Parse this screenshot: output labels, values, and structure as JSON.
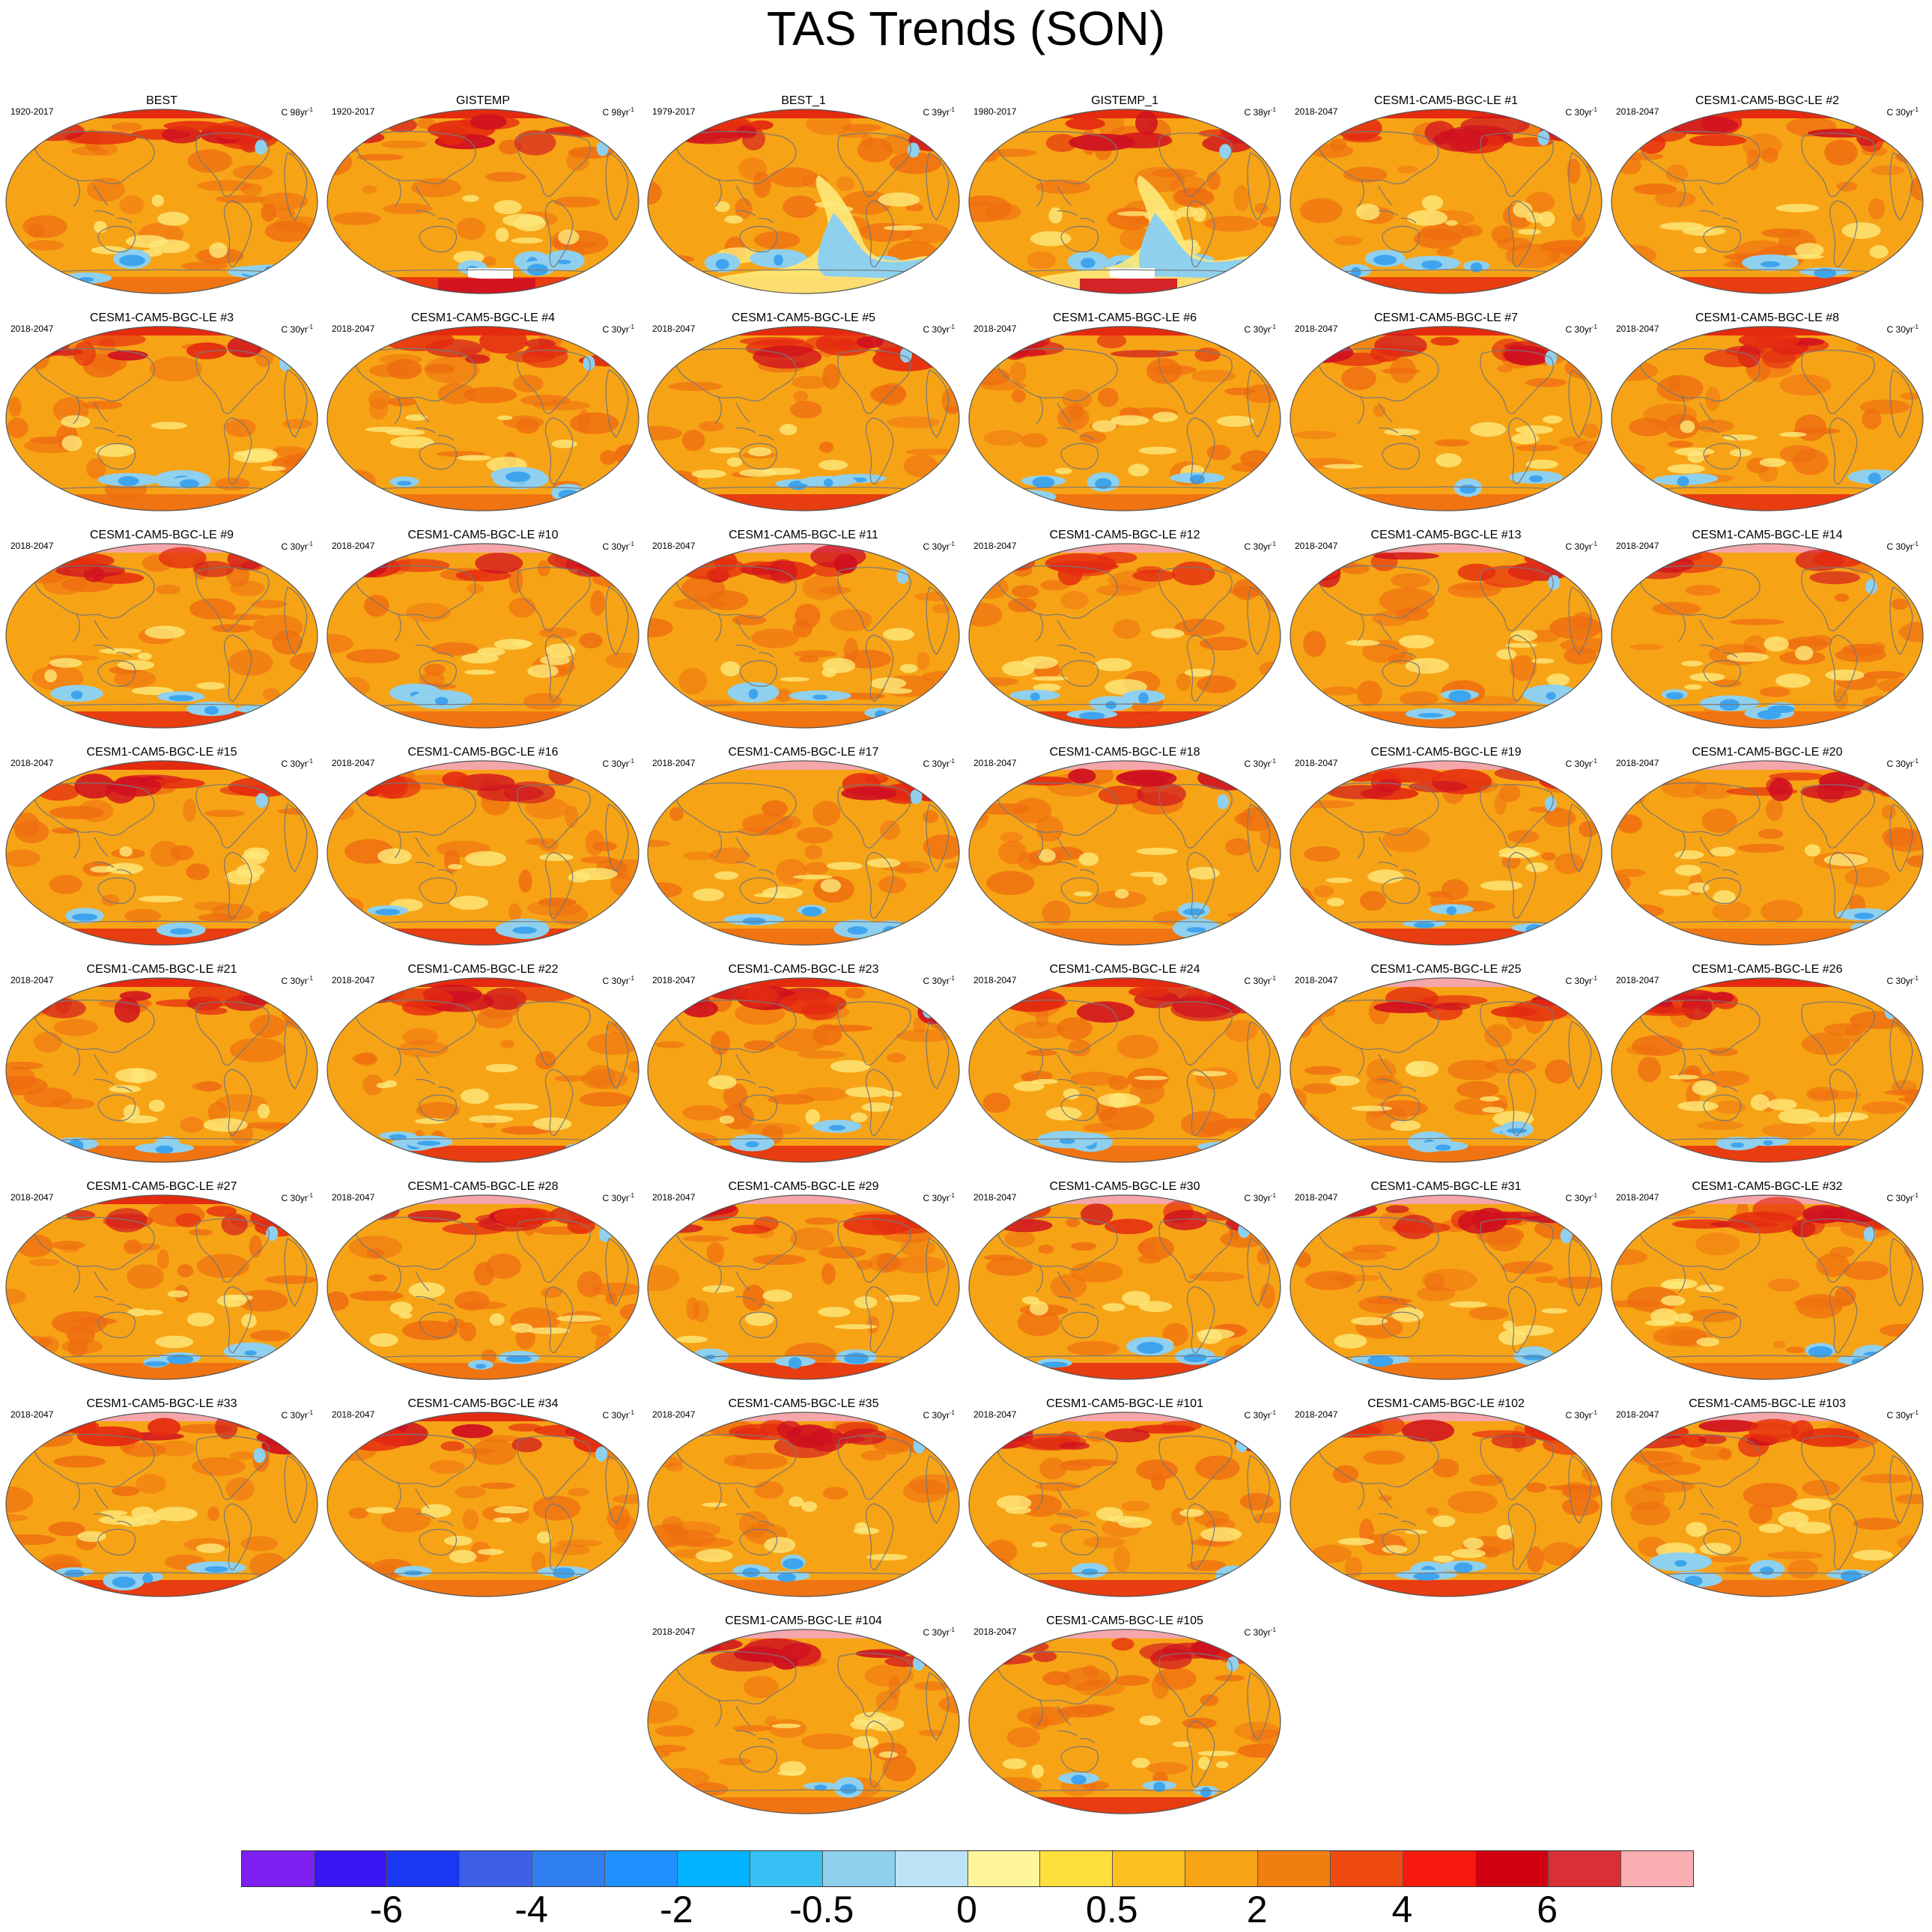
{
  "figure": {
    "title": "TAS Trends (SON)"
  },
  "colors": {
    "base": "#f7a316",
    "warm": "#ee6c10",
    "hot": "#e42b10",
    "veryhot": "#cf1020",
    "pink": "#f4a6aa",
    "light_yellow": "#fde97a",
    "cool": "#8fd0ef",
    "cooler": "#3ea4ee",
    "white": "#ffffff",
    "land_outline": "#777777"
  },
  "colorbar": {
    "colors": [
      "#7e20f2",
      "#3a16f7",
      "#1a38f2",
      "#3d5fe6",
      "#2f7ef0",
      "#1e90ff",
      "#00b2ff",
      "#36c0f3",
      "#8fd0ef",
      "#bde3f7",
      "#fff59a",
      "#fde03c",
      "#fcc020",
      "#f7a316",
      "#f07f10",
      "#f04b0e",
      "#f81a0e",
      "#d00010",
      "#d83035",
      "#f9aeb1"
    ],
    "labels": [
      "-6",
      "-4",
      "-2",
      "-0.5",
      "0",
      "0.5",
      "2",
      "4",
      "6"
    ]
  },
  "panels": [
    {
      "name": "BEST",
      "period": "1920-2017",
      "units": "C 98yr",
      "style": "obs_long"
    },
    {
      "name": "GISTEMP",
      "period": "1920-2017",
      "units": "C 98yr",
      "style": "obs_long_g"
    },
    {
      "name": "BEST_1",
      "period": "1979-2017",
      "units": "C 39yr",
      "style": "obs_short"
    },
    {
      "name": "GISTEMP_1",
      "period": "1980-2017",
      "units": "C 38yr",
      "style": "obs_short_g"
    },
    {
      "name": "CESM1-CAM5-BGC-LE #1",
      "period": "2018-2047",
      "units": "C 30yr",
      "style": "model"
    },
    {
      "name": "CESM1-CAM5-BGC-LE #2",
      "period": "2018-2047",
      "units": "C 30yr",
      "style": "model"
    },
    {
      "name": "CESM1-CAM5-BGC-LE #3",
      "period": "2018-2047",
      "units": "C 30yr",
      "style": "model"
    },
    {
      "name": "CESM1-CAM5-BGC-LE #4",
      "period": "2018-2047",
      "units": "C 30yr",
      "style": "model"
    },
    {
      "name": "CESM1-CAM5-BGC-LE #5",
      "period": "2018-2047",
      "units": "C 30yr",
      "style": "model"
    },
    {
      "name": "CESM1-CAM5-BGC-LE #6",
      "period": "2018-2047",
      "units": "C 30yr",
      "style": "model"
    },
    {
      "name": "CESM1-CAM5-BGC-LE #7",
      "period": "2018-2047",
      "units": "C 30yr",
      "style": "model"
    },
    {
      "name": "CESM1-CAM5-BGC-LE #8",
      "period": "2018-2047",
      "units": "C 30yr",
      "style": "model"
    },
    {
      "name": "CESM1-CAM5-BGC-LE #9",
      "period": "2018-2047",
      "units": "C 30yr",
      "style": "model_pink"
    },
    {
      "name": "CESM1-CAM5-BGC-LE #10",
      "period": "2018-2047",
      "units": "C 30yr",
      "style": "model_pink"
    },
    {
      "name": "CESM1-CAM5-BGC-LE #11",
      "period": "2018-2047",
      "units": "C 30yr",
      "style": "model_pink"
    },
    {
      "name": "CESM1-CAM5-BGC-LE #12",
      "period": "2018-2047",
      "units": "C 30yr",
      "style": "model_pink"
    },
    {
      "name": "CESM1-CAM5-BGC-LE #13",
      "period": "2018-2047",
      "units": "C 30yr",
      "style": "model_pink"
    },
    {
      "name": "CESM1-CAM5-BGC-LE #14",
      "period": "2018-2047",
      "units": "C 30yr",
      "style": "model_pink"
    },
    {
      "name": "CESM1-CAM5-BGC-LE #15",
      "period": "2018-2047",
      "units": "C 30yr",
      "style": "model"
    },
    {
      "name": "CESM1-CAM5-BGC-LE #16",
      "period": "2018-2047",
      "units": "C 30yr",
      "style": "model_pink"
    },
    {
      "name": "CESM1-CAM5-BGC-LE #17",
      "period": "2018-2047",
      "units": "C 30yr",
      "style": "model_pink"
    },
    {
      "name": "CESM1-CAM5-BGC-LE #18",
      "period": "2018-2047",
      "units": "C 30yr",
      "style": "model_pink"
    },
    {
      "name": "CESM1-CAM5-BGC-LE #19",
      "period": "2018-2047",
      "units": "C 30yr",
      "style": "model_pink"
    },
    {
      "name": "CESM1-CAM5-BGC-LE #20",
      "period": "2018-2047",
      "units": "C 30yr",
      "style": "model_pink"
    },
    {
      "name": "CESM1-CAM5-BGC-LE #21",
      "period": "2018-2047",
      "units": "C 30yr",
      "style": "model"
    },
    {
      "name": "CESM1-CAM5-BGC-LE #22",
      "period": "2018-2047",
      "units": "C 30yr",
      "style": "model"
    },
    {
      "name": "CESM1-CAM5-BGC-LE #23",
      "period": "2018-2047",
      "units": "C 30yr",
      "style": "model"
    },
    {
      "name": "CESM1-CAM5-BGC-LE #24",
      "period": "2018-2047",
      "units": "C 30yr",
      "style": "model"
    },
    {
      "name": "CESM1-CAM5-BGC-LE #25",
      "period": "2018-2047",
      "units": "C 30yr",
      "style": "model_pink"
    },
    {
      "name": "CESM1-CAM5-BGC-LE #26",
      "period": "2018-2047",
      "units": "C 30yr",
      "style": "model"
    },
    {
      "name": "CESM1-CAM5-BGC-LE #27",
      "period": "2018-2047",
      "units": "C 30yr",
      "style": "model"
    },
    {
      "name": "CESM1-CAM5-BGC-LE #28",
      "period": "2018-2047",
      "units": "C 30yr",
      "style": "model_pink"
    },
    {
      "name": "CESM1-CAM5-BGC-LE #29",
      "period": "2018-2047",
      "units": "C 30yr",
      "style": "model_pink"
    },
    {
      "name": "CESM1-CAM5-BGC-LE #30",
      "period": "2018-2047",
      "units": "C 30yr",
      "style": "model_pink"
    },
    {
      "name": "CESM1-CAM5-BGC-LE #31",
      "period": "2018-2047",
      "units": "C 30yr",
      "style": "model_pink"
    },
    {
      "name": "CESM1-CAM5-BGC-LE #32",
      "period": "2018-2047",
      "units": "C 30yr",
      "style": "model_pink"
    },
    {
      "name": "CESM1-CAM5-BGC-LE #33",
      "period": "2018-2047",
      "units": "C 30yr",
      "style": "model_pink"
    },
    {
      "name": "CESM1-CAM5-BGC-LE #34",
      "period": "2018-2047",
      "units": "C 30yr",
      "style": "model"
    },
    {
      "name": "CESM1-CAM5-BGC-LE #35",
      "period": "2018-2047",
      "units": "C 30yr",
      "style": "model_pink"
    },
    {
      "name": "CESM1-CAM5-BGC-LE #101",
      "period": "2018-2047",
      "units": "C 30yr",
      "style": "model_pink"
    },
    {
      "name": "CESM1-CAM5-BGC-LE #102",
      "period": "2018-2047",
      "units": "C 30yr",
      "style": "model_pink"
    },
    {
      "name": "CESM1-CAM5-BGC-LE #103",
      "period": "2018-2047",
      "units": "C 30yr",
      "style": "model_pink"
    },
    {
      "name": "CESM1-CAM5-BGC-LE #104",
      "period": "2018-2047",
      "units": "C 30yr",
      "style": "model_pink"
    },
    {
      "name": "CESM1-CAM5-BGC-LE #105",
      "period": "2018-2047",
      "units": "C 30yr",
      "style": "model_pink"
    }
  ],
  "units_exponent": "-1"
}
